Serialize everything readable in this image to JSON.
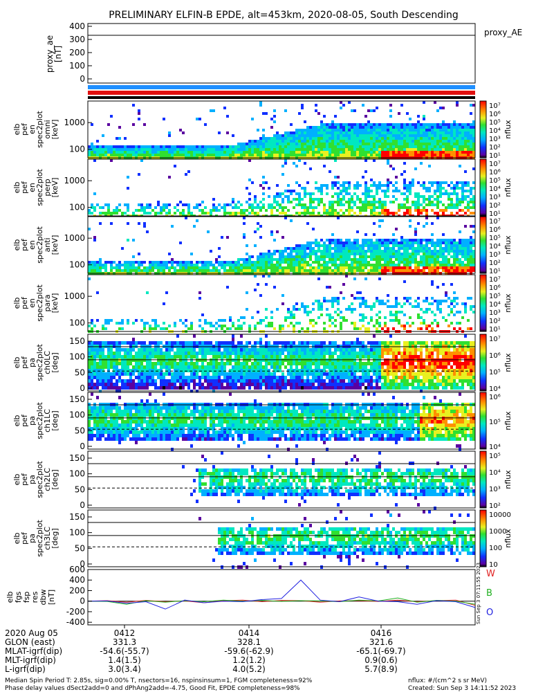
{
  "title": "PRELIMINARY ELFIN-B EPDE, alt=453km, 2020-08-05, South Descending",
  "colors": {
    "blue_bar": "#1f8fff",
    "red_bar": "#e01010",
    "trace_w": "#e02020",
    "trace_b": "#20b020",
    "trace_o": "#2020e0"
  },
  "proxy_panel": {
    "ylabel": [
      "proxy_ae",
      "[nT]"
    ],
    "legend": "proxy_AE",
    "yticks": [
      "400",
      "300",
      "200",
      "100",
      "0"
    ],
    "line_value": 330
  },
  "panels": [
    {
      "ylabel": [
        "elb",
        "pef",
        "en",
        "spec2plot",
        "omni",
        "[keV]"
      ],
      "yticks": [
        "1000",
        "100"
      ],
      "cbar_label": "nflux",
      "cbar_ticks": [
        "10⁷",
        "10⁶",
        "10⁵",
        "10⁴",
        "10³",
        "10²",
        "10¹"
      ]
    },
    {
      "ylabel": [
        "elb",
        "pef",
        "en",
        "spec2plot",
        "perp",
        "[keV]"
      ],
      "yticks": [
        "1000",
        "100"
      ],
      "cbar_label": "nflux",
      "cbar_ticks": [
        "10⁷",
        "10⁶",
        "10⁵",
        "10⁴",
        "10³",
        "10²",
        "10¹"
      ]
    },
    {
      "ylabel": [
        "elb",
        "pef",
        "en",
        "spec2plot",
        "anti",
        "[keV]"
      ],
      "yticks": [
        "1000",
        "100"
      ],
      "cbar_label": "nflux",
      "cbar_ticks": [
        "10⁷",
        "10⁶",
        "10⁵",
        "10⁴",
        "10³",
        "10²",
        "10¹"
      ]
    },
    {
      "ylabel": [
        "elb",
        "pef",
        "en",
        "spec2plot",
        "para",
        "[keV]"
      ],
      "yticks": [
        "1000",
        "100"
      ],
      "cbar_label": "nflux",
      "cbar_ticks": [
        "10⁷",
        "10⁶",
        "10⁵",
        "10⁴",
        "10³",
        "10²",
        "10¹"
      ]
    },
    {
      "ylabel": [
        "elb",
        "pef",
        "pa",
        "spec2plot",
        "ch0LC",
        "[deg]"
      ],
      "yticks": [
        "150",
        "100",
        "50",
        "0"
      ],
      "cbar_label": "nflux",
      "cbar_ticks": [
        "10⁷",
        "10⁶",
        "10⁵",
        "10⁴"
      ]
    },
    {
      "ylabel": [
        "elb",
        "pef",
        "pa",
        "spec2plot",
        "ch1LC",
        "[deg]"
      ],
      "yticks": [
        "150",
        "100",
        "50",
        "0"
      ],
      "cbar_label": "nflux",
      "cbar_ticks": [
        "10⁶",
        "10⁵",
        "10⁴"
      ]
    },
    {
      "ylabel": [
        "elb",
        "pef",
        "pa",
        "spec2plot",
        "ch2LC",
        "[deg]"
      ],
      "yticks": [
        "150",
        "100",
        "50",
        "0"
      ],
      "cbar_label": "nflux",
      "cbar_ticks": [
        "10⁵",
        "10⁴",
        "10³",
        "10²"
      ]
    },
    {
      "ylabel": [
        "elb",
        "pef",
        "pa",
        "spec2plot",
        "ch3LC",
        "[deg]"
      ],
      "yticks": [
        "150",
        "100",
        "50",
        "0"
      ],
      "cbar_label": "nflux",
      "cbar_ticks": [
        "10000",
        "1000",
        "100",
        "10"
      ]
    }
  ],
  "field_panel": {
    "ylabel": [
      "elb",
      "fgs",
      "fsp",
      "res",
      "dbw",
      "[nT]"
    ],
    "yticks": [
      "600",
      "400",
      "200",
      "0",
      "-200",
      "-400"
    ],
    "legend": [
      "W",
      "B",
      "O"
    ],
    "side_text": "Sun Sep 3 07:11:55 2023"
  },
  "orbit_table": {
    "row_labels": [
      "2020 Aug 05",
      "GLON (east)",
      "MLAT-igrf(dip)",
      "MLT-igrf(dip)",
      "L-igrf(dip)"
    ],
    "columns": [
      {
        "time": "0412",
        "values": [
          "331.3",
          "-54.6(-55.7)",
          "1.4(1.5)",
          "3.0(3.4)"
        ]
      },
      {
        "time": "0414",
        "values": [
          "328.1",
          "-59.6(-62.9)",
          "1.2(1.2)",
          "4.0(5.2)"
        ]
      },
      {
        "time": "0416",
        "values": [
          "321.6",
          "-65.1(-69.7)",
          "0.9(0.6)",
          "5.7(8.9)"
        ]
      }
    ]
  },
  "footer": {
    "line1": "Median Spin Period T: 2.85s, sig=0.00% T, nsectors=16, nspinsinsum=1, FGM completeness=92%",
    "line2": "Phase delay values dSect2add=0 and dPhAng2add=-4.75, Good Fit, EPDE completeness=98%",
    "units": "nflux: #/(cm^2 s sr MeV)",
    "created": "Created: Sun Sep  3 14:11:52 2023"
  },
  "chart_data": {
    "type": "line",
    "title": "PRELIMINARY ELFIN-B EPDE, alt=453km, 2020-08-05, South Descending",
    "x_tick_labels": [
      "0412",
      "0414",
      "0416"
    ],
    "proxy_ae": {
      "ylim": [
        0,
        400
      ],
      "value": 330
    },
    "spectrogram_colorbar": {
      "label": "nflux",
      "scale": "log"
    },
    "dbw": {
      "ylim": [
        -450,
        600
      ],
      "series": [
        {
          "name": "W",
          "color": "#e02020",
          "x": [
            0,
            0.05,
            0.1,
            0.15,
            0.2,
            0.25,
            0.3,
            0.35,
            0.4,
            0.45,
            0.5,
            0.55,
            0.6,
            0.65,
            0.7,
            0.75,
            0.8,
            0.85,
            0.9,
            0.95,
            1.0
          ],
          "values": [
            0,
            10,
            -20,
            15,
            -10,
            5,
            -30,
            10,
            20,
            -10,
            15,
            10,
            -20,
            5,
            10,
            -5,
            20,
            -10,
            10,
            20,
            -80
          ]
        },
        {
          "name": "B",
          "color": "#20b020",
          "x": [
            0,
            0.05,
            0.1,
            0.15,
            0.2,
            0.25,
            0.3,
            0.35,
            0.4,
            0.45,
            0.5,
            0.55,
            0.6,
            0.65,
            0.7,
            0.75,
            0.8,
            0.85,
            0.9,
            0.95,
            1.0
          ],
          "values": [
            0,
            -5,
            -60,
            10,
            -20,
            10,
            -10,
            20,
            0,
            15,
            -5,
            10,
            5,
            -10,
            20,
            5,
            60,
            -20,
            15,
            0,
            -60
          ]
        },
        {
          "name": "O",
          "color": "#2020e0",
          "x": [
            0,
            0.05,
            0.1,
            0.15,
            0.2,
            0.25,
            0.3,
            0.35,
            0.4,
            0.45,
            0.5,
            0.55,
            0.6,
            0.65,
            0.7,
            0.75,
            0.8,
            0.85,
            0.9,
            0.95,
            1.0
          ],
          "values": [
            0,
            5,
            -40,
            -10,
            -150,
            20,
            -30,
            0,
            -10,
            30,
            50,
            400,
            20,
            -10,
            80,
            0,
            -10,
            -60,
            10,
            -10,
            -120
          ]
        }
      ]
    }
  }
}
